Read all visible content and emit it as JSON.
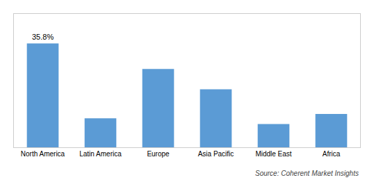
{
  "chart_data": {
    "type": "bar",
    "categories": [
      "North America",
      "Latin America",
      "Europe",
      "Asia Pacific",
      "Middle East",
      "Africa"
    ],
    "values": [
      35.8,
      10.0,
      27.0,
      20.0,
      8.0,
      11.5
    ],
    "color": "#5b9bd5",
    "ylim": [
      0,
      46
    ],
    "grid": false,
    "tick_labels": "x",
    "annotations": [
      {
        "text": "35.8%",
        "x": "North America",
        "y": 35.8
      }
    ],
    "source": "Source: Coherent Market Insights"
  }
}
